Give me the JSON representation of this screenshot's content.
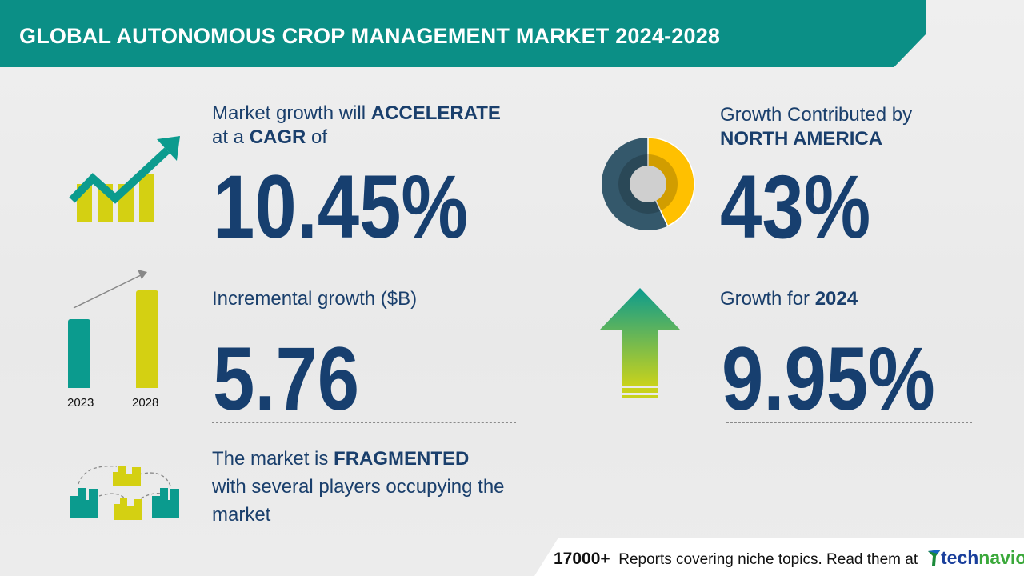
{
  "header": {
    "title": "GLOBAL AUTONOMOUS CROP MANAGEMENT MARKET 2024-2028"
  },
  "cagr": {
    "line1_prefix": "Market growth will ",
    "line1_bold": "ACCELERATE",
    "line2_prefix": "at a ",
    "line2_bold": "CAGR",
    "line2_suffix": " of",
    "value": "10.45%"
  },
  "incremental": {
    "label": "Incremental growth ($B)",
    "value": "5.76",
    "bar_years": [
      "2023",
      "2028"
    ]
  },
  "fragmented": {
    "line1_prefix": "The market is ",
    "line1_bold": "FRAGMENTED",
    "line2": "with several players occupying the",
    "line3": "market"
  },
  "region": {
    "line1": "Growth Contributed by",
    "line2_bold": "NORTH AMERICA",
    "value": "43%",
    "share_percent": 43
  },
  "growth_year": {
    "label_prefix": "Growth for ",
    "label_bold": "2024",
    "value": "9.95%"
  },
  "footer": {
    "count": "17000+",
    "text": "Reports covering niche topics. Read them at",
    "logo_part1": "tech",
    "logo_part2": "navio"
  },
  "colors": {
    "teal": "#0b8f86",
    "lime": "#d4d012",
    "navy": "#1a3f6c",
    "donut_yellow": "#ffc000",
    "donut_slate": "#34586b"
  }
}
